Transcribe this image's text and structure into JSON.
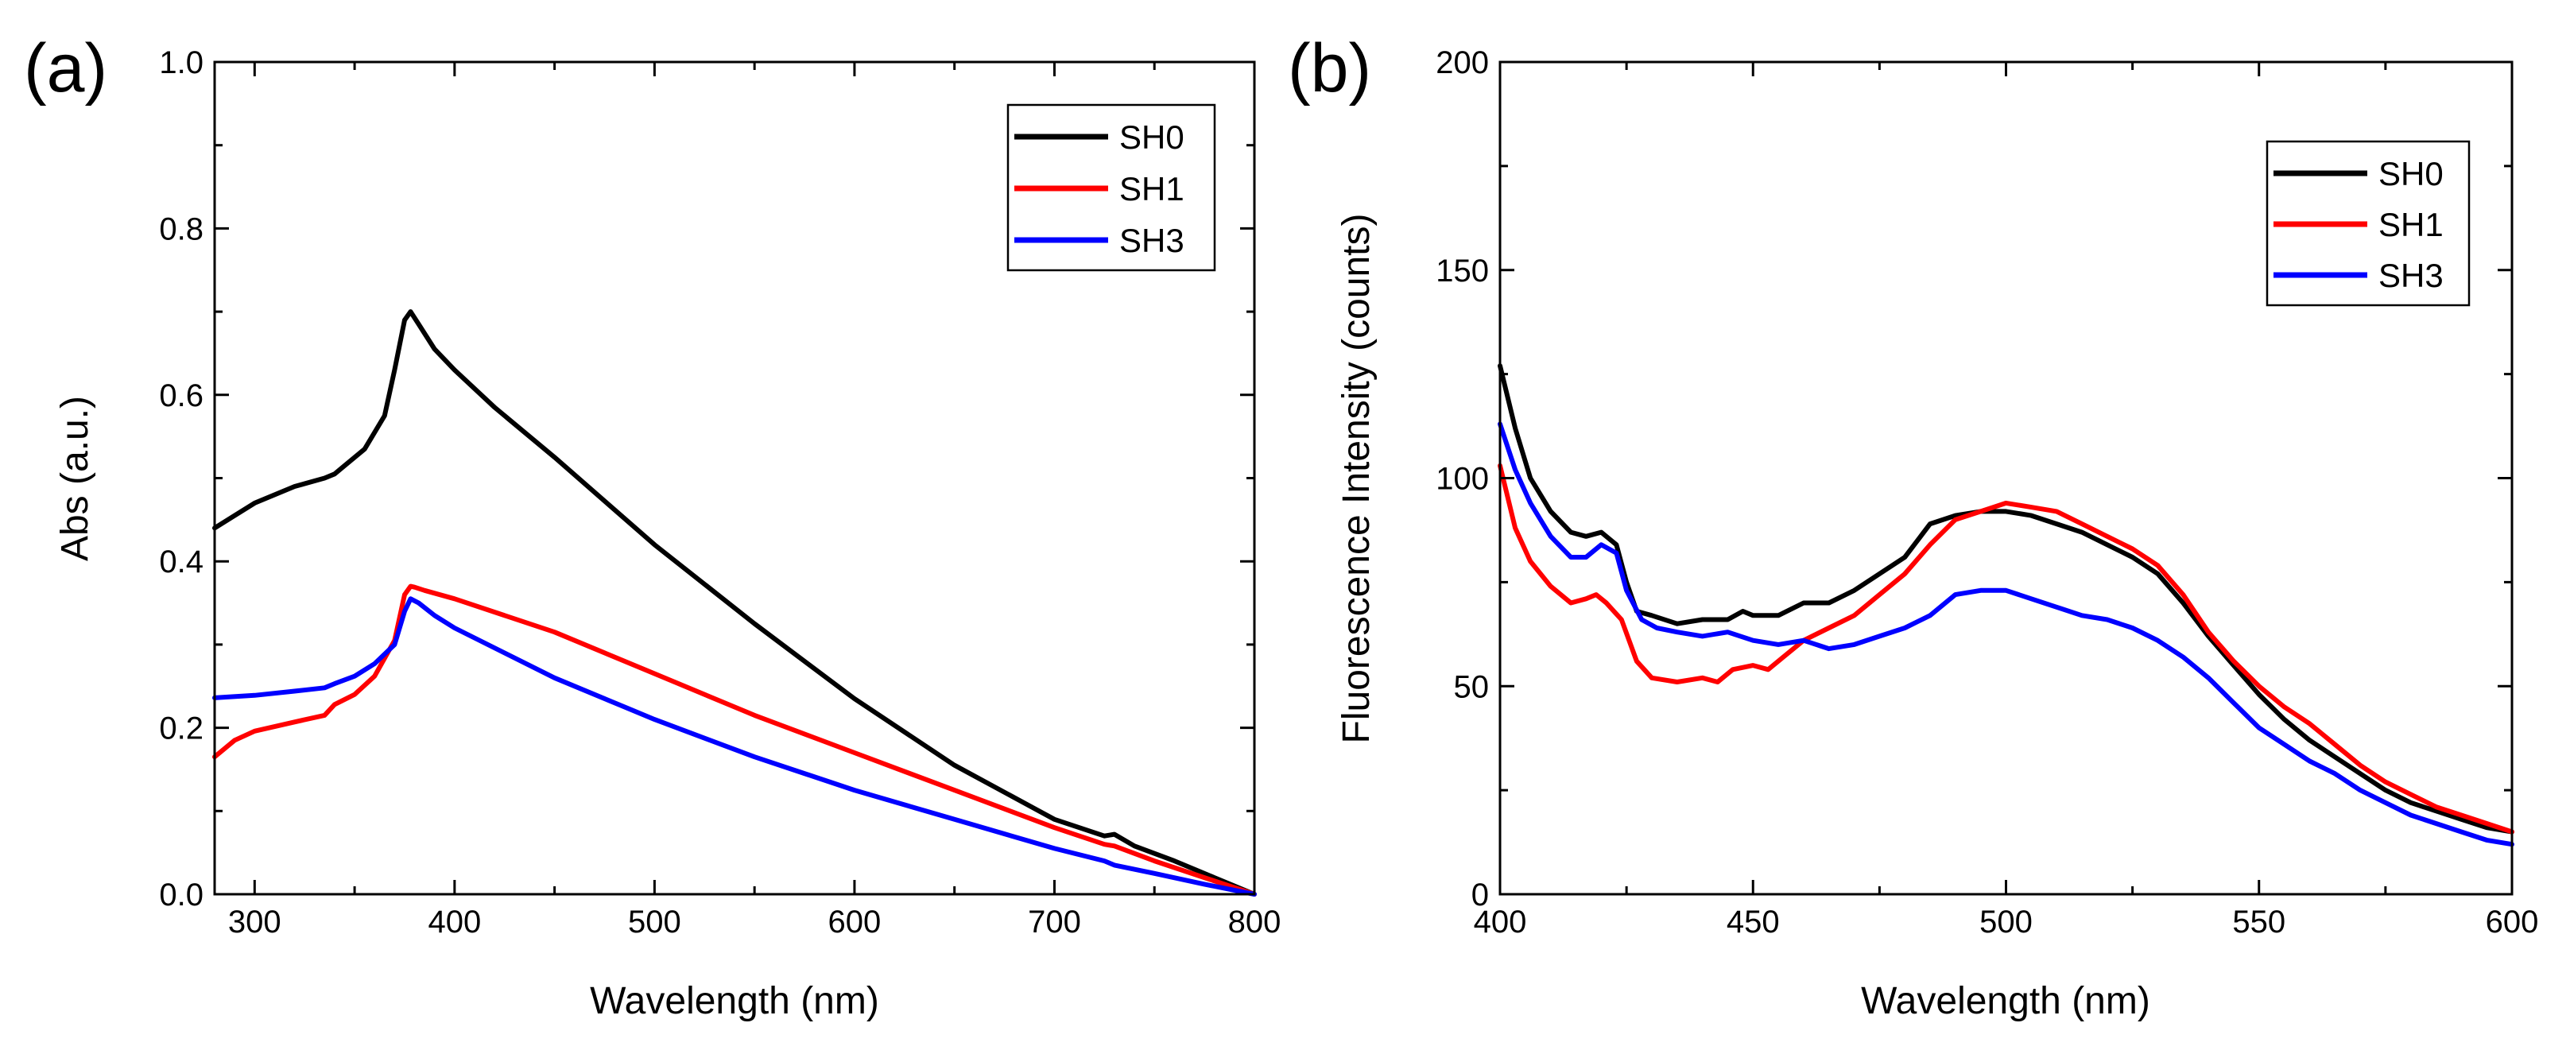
{
  "chart_data": [
    {
      "type": "line",
      "panel": "(a)",
      "title": "",
      "xlabel": "Wavelength (nm)",
      "ylabel": "Abs (a.u.)",
      "xlim": [
        280,
        800
      ],
      "ylim": [
        0.0,
        1.0
      ],
      "xticks": [
        300,
        400,
        500,
        600,
        700,
        800
      ],
      "xtick_labels": [
        "300",
        "400",
        "500",
        "600",
        "700",
        "800"
      ],
      "yticks": [
        0.0,
        0.2,
        0.4,
        0.6,
        0.8,
        1.0
      ],
      "ytick_labels": [
        "0.0",
        "0.2",
        "0.4",
        "0.6",
        "0.8",
        "1.0"
      ],
      "legend_position": "top-right",
      "series": [
        {
          "name": "SH0",
          "color": "#000000",
          "x": [
            280,
            290,
            300,
            320,
            335,
            340,
            345,
            355,
            365,
            370,
            375,
            378,
            382,
            390,
            400,
            420,
            450,
            500,
            550,
            600,
            650,
            700,
            725,
            730,
            740,
            760,
            780,
            800
          ],
          "y": [
            0.44,
            0.455,
            0.47,
            0.49,
            0.5,
            0.505,
            0.515,
            0.535,
            0.575,
            0.63,
            0.69,
            0.7,
            0.685,
            0.655,
            0.63,
            0.585,
            0.525,
            0.42,
            0.325,
            0.235,
            0.155,
            0.09,
            0.07,
            0.072,
            0.058,
            0.04,
            0.02,
            0.0
          ]
        },
        {
          "name": "SH1",
          "color": "#ff0000",
          "x": [
            280,
            290,
            300,
            320,
            335,
            340,
            350,
            360,
            370,
            375,
            378,
            380,
            385,
            400,
            450,
            500,
            550,
            600,
            650,
            700,
            725,
            730,
            750,
            775,
            800
          ],
          "y": [
            0.165,
            0.185,
            0.196,
            0.207,
            0.215,
            0.228,
            0.24,
            0.262,
            0.305,
            0.36,
            0.37,
            0.369,
            0.365,
            0.355,
            0.315,
            0.265,
            0.215,
            0.17,
            0.125,
            0.08,
            0.06,
            0.058,
            0.04,
            0.02,
            0.0
          ]
        },
        {
          "name": "SH3",
          "color": "#0000ff",
          "x": [
            280,
            300,
            320,
            335,
            340,
            350,
            360,
            370,
            375,
            378,
            382,
            390,
            400,
            450,
            500,
            550,
            600,
            650,
            700,
            725,
            730,
            750,
            775,
            800
          ],
          "y": [
            0.236,
            0.239,
            0.244,
            0.248,
            0.253,
            0.262,
            0.277,
            0.3,
            0.34,
            0.355,
            0.35,
            0.335,
            0.32,
            0.26,
            0.21,
            0.165,
            0.125,
            0.09,
            0.055,
            0.04,
            0.035,
            0.025,
            0.012,
            0.0
          ]
        }
      ]
    },
    {
      "type": "line",
      "panel": "(b)",
      "title": "",
      "xlabel": "Wavelength (nm)",
      "ylabel": "Fluorescence Intensity (counts)",
      "xlim": [
        400,
        600
      ],
      "ylim": [
        0,
        200
      ],
      "xticks": [
        400,
        450,
        500,
        550,
        600
      ],
      "xtick_labels": [
        "400",
        "450",
        "500",
        "550",
        "600"
      ],
      "yticks": [
        0,
        50,
        100,
        150,
        200
      ],
      "ytick_labels": [
        "0",
        "50",
        "100",
        "150",
        "200"
      ],
      "legend_position": "top-right",
      "series": [
        {
          "name": "SH0",
          "color": "#000000",
          "x": [
            400,
            403,
            406,
            410,
            414,
            417,
            420,
            423,
            425,
            427,
            430,
            435,
            440,
            445,
            448,
            450,
            455,
            460,
            465,
            470,
            475,
            480,
            485,
            490,
            495,
            500,
            505,
            510,
            515,
            520,
            525,
            530,
            535,
            540,
            545,
            550,
            555,
            560,
            565,
            570,
            575,
            580,
            585,
            590,
            595,
            600
          ],
          "y": [
            127,
            112,
            100,
            92,
            87,
            86,
            87,
            84,
            75,
            68,
            67,
            65,
            66,
            66,
            68,
            67,
            67,
            70,
            70,
            73,
            77,
            81,
            89,
            91,
            92,
            92,
            91,
            89,
            87,
            84,
            81,
            77,
            70,
            62,
            55,
            48,
            42,
            37,
            33,
            29,
            25,
            22,
            20,
            18,
            16,
            15
          ]
        },
        {
          "name": "SH1",
          "color": "#ff0000",
          "x": [
            400,
            403,
            406,
            410,
            414,
            417,
            419,
            421,
            424,
            427,
            430,
            435,
            440,
            443,
            446,
            450,
            453,
            456,
            460,
            465,
            470,
            475,
            480,
            485,
            490,
            495,
            500,
            505,
            510,
            515,
            520,
            525,
            530,
            535,
            540,
            545,
            550,
            555,
            560,
            565,
            570,
            575,
            580,
            585,
            590,
            595,
            600
          ],
          "y": [
            103,
            88,
            80,
            74,
            70,
            71,
            72,
            70,
            66,
            56,
            52,
            51,
            52,
            51,
            54,
            55,
            54,
            57,
            61,
            64,
            67,
            72,
            77,
            84,
            90,
            92,
            94,
            93,
            92,
            89,
            86,
            83,
            79,
            72,
            63,
            56,
            50,
            45,
            41,
            36,
            31,
            27,
            24,
            21,
            19,
            17,
            15
          ]
        },
        {
          "name": "SH3",
          "color": "#0000ff",
          "x": [
            400,
            403,
            406,
            410,
            414,
            417,
            420,
            423,
            425,
            428,
            431,
            435,
            440,
            445,
            450,
            455,
            460,
            465,
            470,
            475,
            480,
            485,
            490,
            495,
            500,
            505,
            510,
            515,
            520,
            525,
            530,
            535,
            540,
            545,
            550,
            555,
            560,
            565,
            570,
            575,
            580,
            585,
            590,
            595,
            600
          ],
          "y": [
            113,
            102,
            94,
            86,
            81,
            81,
            84,
            82,
            73,
            66,
            64,
            63,
            62,
            63,
            61,
            60,
            61,
            59,
            60,
            62,
            64,
            67,
            72,
            73,
            73,
            71,
            69,
            67,
            66,
            64,
            61,
            57,
            52,
            46,
            40,
            36,
            32,
            29,
            25,
            22,
            19,
            17,
            15,
            13,
            12
          ]
        }
      ]
    }
  ]
}
